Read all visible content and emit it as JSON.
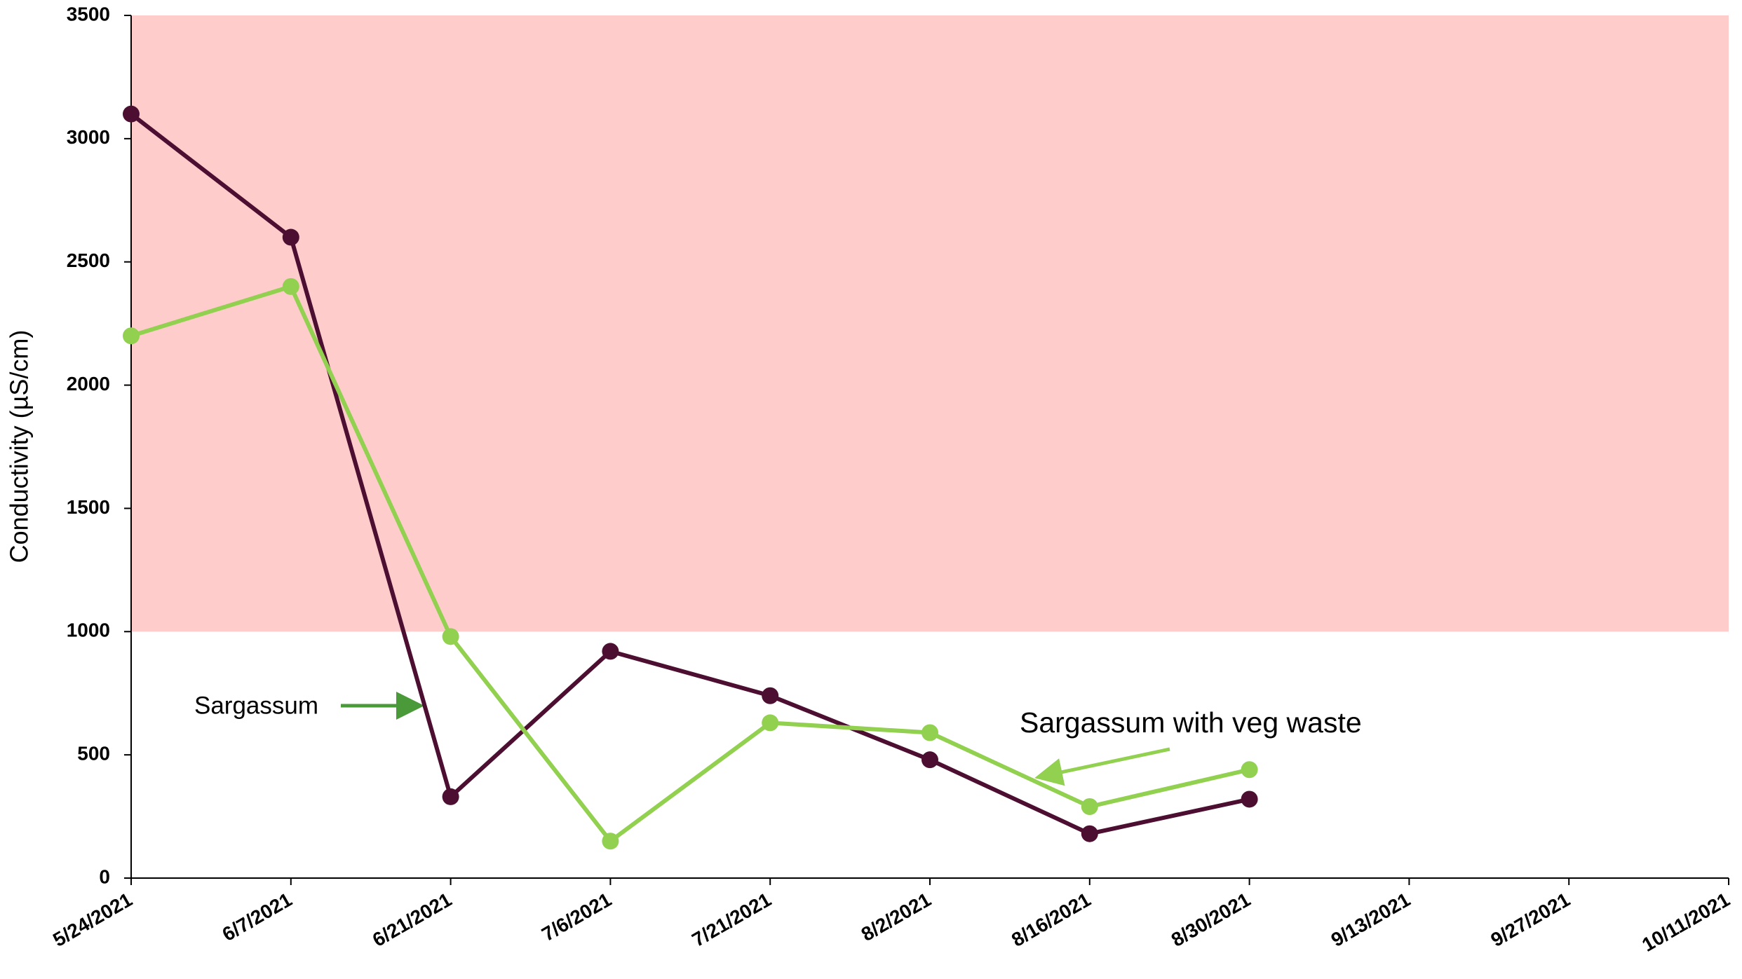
{
  "chart_data": {
    "type": "line",
    "y_label": "Conductivity (µS/cm)",
    "categories": [
      "5/24/2021",
      "6/7/2021",
      "6/21/2021",
      "7/6/2021",
      "7/21/2021",
      "8/2/2021",
      "8/16/2021",
      "8/30/2021",
      "9/13/2021",
      "9/27/2021",
      "10/11/2021"
    ],
    "series": [
      {
        "color": "#4d0f31",
        "values": [
          3100,
          2600,
          330,
          920,
          740,
          480,
          180,
          320,
          null,
          null,
          null
        ]
      },
      {
        "color": "#92d050",
        "values": [
          2200,
          2400,
          980,
          150,
          630,
          590,
          290,
          440,
          null,
          null,
          null
        ]
      }
    ],
    "ylim": [
      0,
      3500
    ],
    "yticks": [
      0,
      500,
      1000,
      1500,
      2000,
      2500,
      3000,
      3500
    ],
    "shaded_band": {
      "from": 1000,
      "to": 3500,
      "color": "#ffcccc"
    },
    "annotations": [
      {
        "text": "Sargassum"
      },
      {
        "text": "Sargassum with veg waste"
      }
    ]
  }
}
